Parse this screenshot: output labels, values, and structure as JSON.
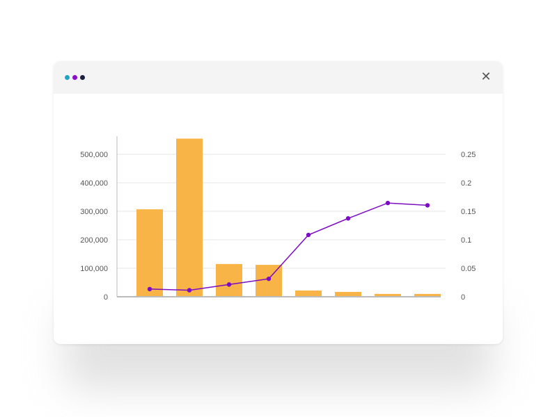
{
  "window": {
    "controls": [
      {
        "name": "dot-teal",
        "color": "#21a3c4"
      },
      {
        "name": "dot-purple",
        "color": "#8a10c8"
      },
      {
        "name": "dot-navy",
        "color": "#1c1f3f"
      }
    ],
    "close_icon": "✕"
  },
  "colors": {
    "bar": "#f8b446",
    "line": "#7b0cc4",
    "grid": "#e6e6e6",
    "axis": "#bbbbbb"
  },
  "chart_data": {
    "type": "bar",
    "categories": [
      "",
      "",
      "",
      "",
      "",
      "",
      "",
      ""
    ],
    "series": [
      {
        "type": "bar",
        "axis": "left",
        "values": [
          307000,
          555000,
          115000,
          112000,
          22000,
          17000,
          10000,
          10000
        ]
      },
      {
        "type": "line",
        "axis": "right",
        "values": [
          0.0135,
          0.0115,
          0.0215,
          0.0315,
          0.1085,
          0.1375,
          0.1645,
          0.1605
        ]
      }
    ],
    "y_left": {
      "min": 0,
      "max": 550000,
      "ticks": [
        0,
        100000,
        200000,
        300000,
        400000,
        500000
      ],
      "tick_labels": [
        "0",
        "100,000",
        "200,000",
        "300,000",
        "400,000",
        "500,000"
      ]
    },
    "y_right": {
      "min": 0,
      "max": 0.275,
      "ticks": [
        0,
        0.05,
        0.1,
        0.15,
        0.2,
        0.25
      ],
      "tick_labels": [
        "0",
        "0.05",
        "0.1",
        "0.15",
        "0.2",
        "0.25"
      ]
    },
    "title": "",
    "xlabel": "",
    "ylabel": "",
    "grid": true,
    "legend": "none"
  }
}
